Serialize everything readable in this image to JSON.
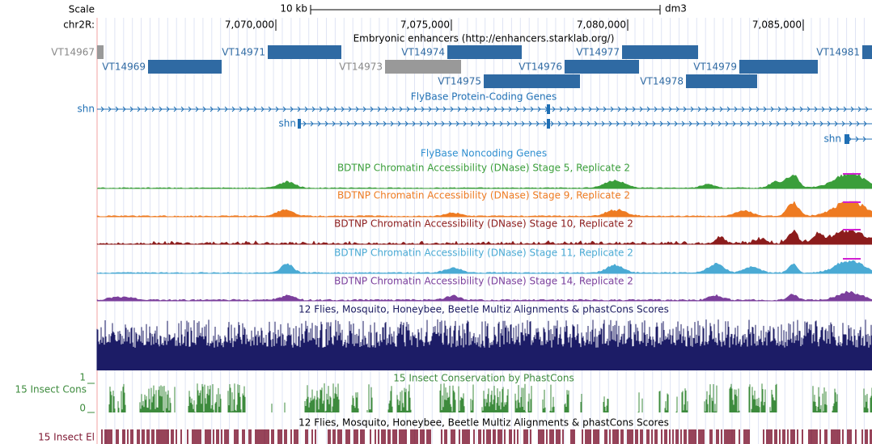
{
  "header": {
    "scale_label": "Scale",
    "scale_bar": "10 kb",
    "assembly": "dm3",
    "chrom": "chr2R:",
    "positions": [
      "7,070,000",
      "7,075,000",
      "7,080,000",
      "7,085,000"
    ]
  },
  "tracks": {
    "enhancers": {
      "title": "Embryonic enhancers (http://enhancers.starklab.org/)",
      "items": [
        "VT14967",
        "VT14971",
        "VT14974",
        "VT14977",
        "VT14981",
        "VT14969",
        "VT14973",
        "VT14976",
        "VT14979",
        "VT14975",
        "VT14978"
      ]
    },
    "genes": {
      "title": "FlyBase Protein-Coding Genes",
      "labels": [
        "shn",
        "shn",
        "shn"
      ]
    },
    "noncoding": {
      "title": "FlyBase Noncoding Genes"
    },
    "dnase": [
      {
        "title": "BDTNP Chromatin Accessibility (DNase) Stage 5, Replicate 2",
        "color": "#3a9e3a"
      },
      {
        "title": "BDTNP Chromatin Accessibility (DNase) Stage 9, Replicate 2",
        "color": "#ee7b22"
      },
      {
        "title": "BDTNP Chromatin Accessibility (DNase) Stage 10, Replicate 2",
        "color": "#8c1c1c"
      },
      {
        "title": "BDTNP Chromatin Accessibility (DNase) Stage 11, Replicate 2",
        "color": "#4aaad4"
      },
      {
        "title": "BDTNP Chromatin Accessibility (DNase) Stage 14, Replicate 2",
        "color": "#7b3f9c"
      }
    ],
    "multiz": {
      "title": "12 Flies, Mosquito, Honeybee, Beetle Multiz Alignments & phastCons Scores"
    },
    "phastcons": {
      "title": "15 Insect Conservation by PhastCons",
      "label": "15 Insect Cons",
      "max": 1,
      "min": 0
    },
    "elements": {
      "title": "12 Flies, Mosquito, Honeybee, Beetle Multiz Alignments & phastCons Scores",
      "label": "15 Insect El"
    }
  }
}
